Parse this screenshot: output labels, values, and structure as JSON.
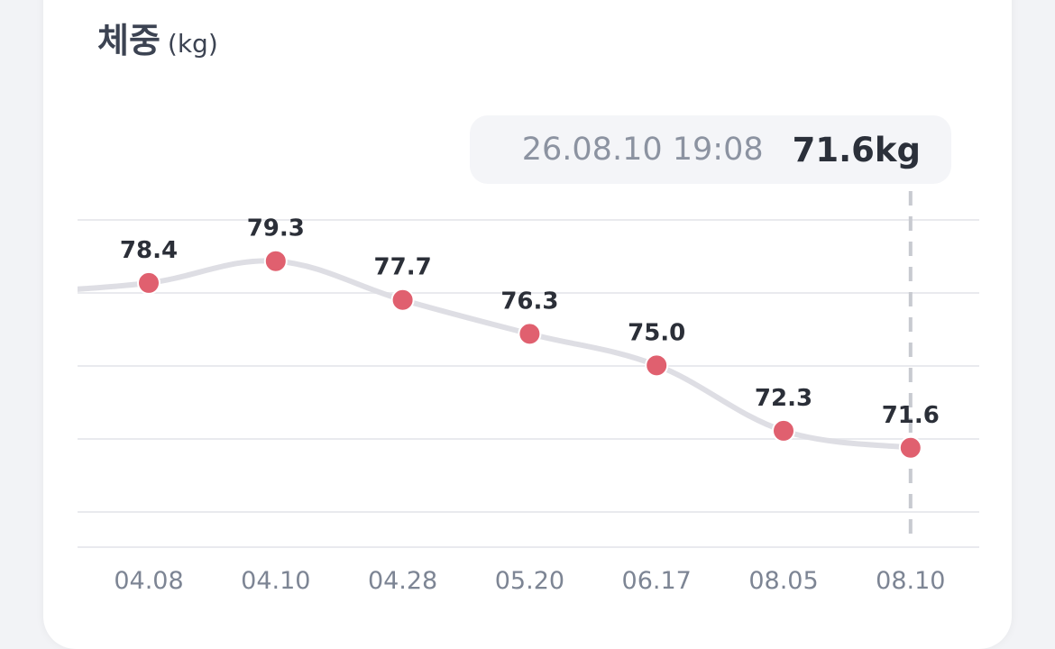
{
  "header": {
    "title": "체중",
    "unit": "(kg)"
  },
  "tooltip": {
    "timestamp": "26.08.10 19:08",
    "value": "71.6kg"
  },
  "colors": {
    "point": "#e0606f",
    "line": "#dedee4",
    "grid": "#e9eaee",
    "cursor": "#c8cad0"
  },
  "chart_data": {
    "type": "line",
    "title": "체중",
    "ylabel": "(kg)",
    "x": [
      "04.08",
      "04.10",
      "04.28",
      "05.20",
      "06.17",
      "08.05",
      "08.10"
    ],
    "values": [
      78.4,
      79.3,
      77.7,
      76.3,
      75.0,
      72.3,
      71.6
    ],
    "partial_left_value": 78.0,
    "highlighted_index": 6,
    "ylim": [
      67.5,
      81.0
    ],
    "grid": true,
    "legend": "none"
  }
}
